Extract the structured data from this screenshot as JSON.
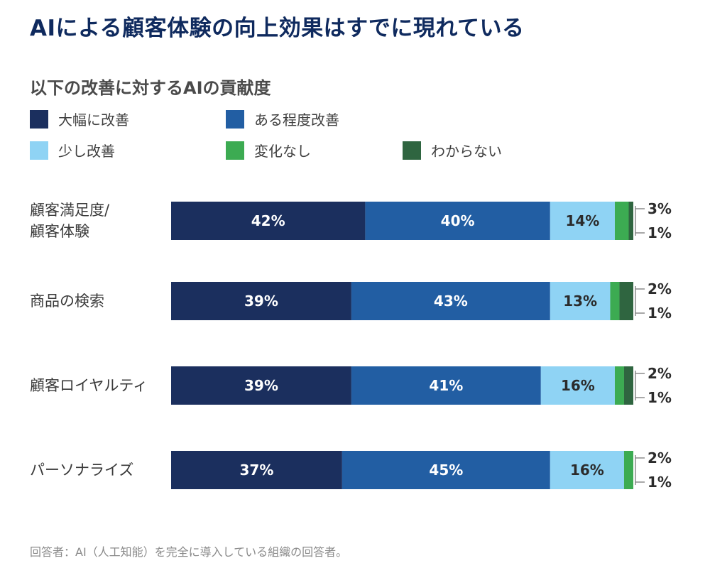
{
  "header": {
    "title": "AIによる顧客体験の向上効果はすでに現れている",
    "subtitle": "以下の改善に対するAIの貢献度"
  },
  "legend": [
    {
      "label": "大幅に改善",
      "color": "#1b2f5e"
    },
    {
      "label": "ある程度改善",
      "color": "#225ea3"
    },
    {
      "label": "少し改善",
      "color": "#8fd3f4"
    },
    {
      "label": "変化なし",
      "color": "#3cab52"
    },
    {
      "label": "わからない",
      "color": "#2f6540"
    }
  ],
  "footnote": "回答者：AI（人工知能）を完全に導入している組織の回答者。",
  "chart_data": {
    "type": "bar",
    "orientation": "horizontal",
    "stacked": true,
    "title": "以下の改善に対するAIの貢献度",
    "categories": [
      "顧客満足度/\n顧客体験",
      "商品の検索",
      "顧客ロイヤルティ",
      "パーソナライズ"
    ],
    "series": [
      {
        "name": "大幅に改善",
        "color": "#1b2f5e",
        "values": [
          42,
          39,
          39,
          37
        ]
      },
      {
        "name": "ある程度改善",
        "color": "#225ea3",
        "values": [
          40,
          43,
          41,
          45
        ]
      },
      {
        "name": "少し改善",
        "color": "#8fd3f4",
        "values": [
          14,
          13,
          16,
          16
        ]
      },
      {
        "name": "変化なし",
        "color": "#3cab52",
        "values": [
          3,
          2,
          2,
          2
        ]
      },
      {
        "name": "わからない",
        "color": "#2f6540",
        "values": [
          1,
          1,
          1,
          1
        ]
      }
    ],
    "unit": "%",
    "xlim": [
      0,
      100
    ]
  }
}
